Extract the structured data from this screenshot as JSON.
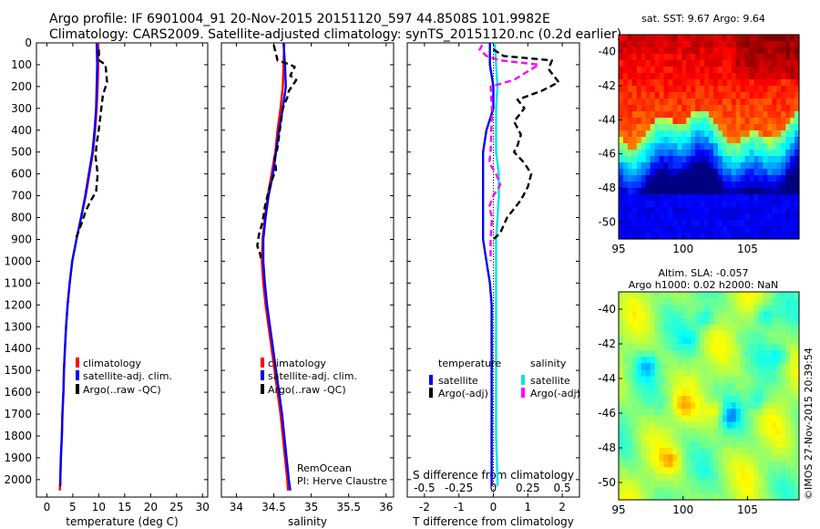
{
  "title_line1": "Argo profile: IF 6901004_91 20-Nov-2015 20151120_597 44.8508S 101.9982E",
  "title_line2": "Climatology: CARS2009. Satellite-adjusted climatology: synTS_20151120.nc (0.2d earlier)",
  "sst_title": "sat. SST: 9.67 Argo: 9.64",
  "sla_title1": "Altim. SLA: -0.057",
  "sla_title2": "Argo h1000: 0.02 h2000: NaN",
  "credit": "©IMOS 27-Nov-2015 20:39:54",
  "colors": {
    "climatology": "#ff0000",
    "satellite": "#0000ff",
    "argo": "#000000",
    "sal_sat": "#00e5e5",
    "sal_argo": "#ff00ff"
  },
  "chart_data": [
    {
      "type": "line",
      "xlabel": "temperature (deg C)",
      "xlim": [
        -2,
        31
      ],
      "ylim": [
        0,
        2080
      ],
      "xticks": [
        0,
        5,
        10,
        15,
        20,
        25,
        30
      ],
      "xtick_labels": [
        "0",
        "5",
        "10",
        "15",
        "20",
        "25",
        "30"
      ],
      "yticks": [
        0,
        100,
        200,
        300,
        400,
        500,
        600,
        700,
        800,
        900,
        1000,
        1100,
        1200,
        1300,
        1400,
        1500,
        1600,
        1700,
        1800,
        1900,
        2000
      ],
      "legend": [
        "climatology",
        "satellite-adj. clim.",
        "Argo(..raw -QC)"
      ],
      "series": [
        {
          "name": "climatology",
          "color": "#ff0000",
          "dash": "",
          "points": [
            [
              9.9,
              0
            ],
            [
              9.9,
              100
            ],
            [
              9.8,
              200
            ],
            [
              9.6,
              300
            ],
            [
              9.3,
              400
            ],
            [
              8.9,
              500
            ],
            [
              8.2,
              600
            ],
            [
              7.5,
              700
            ],
            [
              6.6,
              800
            ],
            [
              5.7,
              900
            ],
            [
              4.9,
              1000
            ],
            [
              4.4,
              1100
            ],
            [
              4.0,
              1200
            ],
            [
              3.7,
              1300
            ],
            [
              3.5,
              1400
            ],
            [
              3.3,
              1500
            ],
            [
              3.2,
              1600
            ],
            [
              3.0,
              1700
            ],
            [
              2.9,
              1800
            ],
            [
              2.7,
              1900
            ],
            [
              2.6,
              2000
            ],
            [
              2.5,
              2050
            ]
          ]
        },
        {
          "name": "satellite-adj. clim.",
          "color": "#0000ff",
          "dash": "",
          "points": [
            [
              9.6,
              0
            ],
            [
              9.7,
              100
            ],
            [
              9.6,
              200
            ],
            [
              9.5,
              300
            ],
            [
              9.2,
              400
            ],
            [
              8.8,
              500
            ],
            [
              8.1,
              600
            ],
            [
              7.4,
              700
            ],
            [
              6.6,
              800
            ],
            [
              5.7,
              900
            ],
            [
              4.9,
              1000
            ],
            [
              4.4,
              1100
            ],
            [
              4.0,
              1200
            ],
            [
              3.7,
              1300
            ],
            [
              3.5,
              1400
            ],
            [
              3.3,
              1500
            ],
            [
              3.2,
              1600
            ],
            [
              3.0,
              1700
            ],
            [
              2.9,
              1800
            ],
            [
              2.7,
              1900
            ],
            [
              2.6,
              2000
            ],
            [
              2.6,
              2030
            ]
          ]
        },
        {
          "name": "Argo(..raw -QC)",
          "color": "#000000",
          "dash": "7,4",
          "points": [
            [
              10.0,
              30
            ],
            [
              10.1,
              80
            ],
            [
              11.3,
              100
            ],
            [
              11.6,
              180
            ],
            [
              10.8,
              240
            ],
            [
              10.5,
              300
            ],
            [
              10.0,
              400
            ],
            [
              9.6,
              460
            ],
            [
              9.4,
              520
            ],
            [
              9.8,
              600
            ],
            [
              9.5,
              680
            ],
            [
              8.3,
              730
            ],
            [
              7.5,
              770
            ],
            [
              6.8,
              820
            ],
            [
              6.2,
              860
            ],
            [
              5.5,
              900
            ]
          ]
        }
      ]
    },
    {
      "type": "line",
      "xlabel": "salinity",
      "xlim": [
        33.8,
        36.1
      ],
      "ylim": [
        0,
        2080
      ],
      "xticks": [
        34,
        34.5,
        35,
        35.5,
        36
      ],
      "xtick_labels": [
        "34",
        "34.5",
        "35",
        "35.5",
        "36"
      ],
      "legend": [
        "climatology",
        "satellite-adj. clim.",
        "Argo(..raw -QC)"
      ],
      "annotation1": "RemOcean",
      "annotation2": "PI: Herve Claustre",
      "series": [
        {
          "name": "climatology",
          "color": "#ff0000",
          "dash": "",
          "points": [
            [
              34.64,
              0
            ],
            [
              34.63,
              100
            ],
            [
              34.62,
              200
            ],
            [
              34.59,
              300
            ],
            [
              34.55,
              400
            ],
            [
              34.52,
              500
            ],
            [
              34.47,
              600
            ],
            [
              34.42,
              700
            ],
            [
              34.38,
              800
            ],
            [
              34.35,
              900
            ],
            [
              34.34,
              1000
            ],
            [
              34.36,
              1100
            ],
            [
              34.39,
              1200
            ],
            [
              34.43,
              1300
            ],
            [
              34.47,
              1400
            ],
            [
              34.51,
              1500
            ],
            [
              34.55,
              1600
            ],
            [
              34.59,
              1700
            ],
            [
              34.62,
              1800
            ],
            [
              34.65,
              1900
            ],
            [
              34.68,
              2000
            ],
            [
              34.69,
              2050
            ]
          ]
        },
        {
          "name": "satellite-adj. clim.",
          "color": "#0000ff",
          "dash": "",
          "points": [
            [
              34.63,
              0
            ],
            [
              34.65,
              100
            ],
            [
              34.66,
              200
            ],
            [
              34.62,
              300
            ],
            [
              34.57,
              400
            ],
            [
              34.53,
              500
            ],
            [
              34.49,
              600
            ],
            [
              34.43,
              700
            ],
            [
              34.39,
              800
            ],
            [
              34.36,
              900
            ],
            [
              34.36,
              1000
            ],
            [
              34.38,
              1100
            ],
            [
              34.41,
              1200
            ],
            [
              34.45,
              1300
            ],
            [
              34.49,
              1400
            ],
            [
              34.53,
              1500
            ],
            [
              34.57,
              1600
            ],
            [
              34.61,
              1700
            ],
            [
              34.64,
              1800
            ],
            [
              34.67,
              1900
            ],
            [
              34.7,
              2000
            ],
            [
              34.72,
              2050
            ]
          ]
        },
        {
          "name": "Argo(..raw -QC)",
          "color": "#000000",
          "dash": "7,4",
          "points": [
            [
              34.5,
              10
            ],
            [
              34.55,
              80
            ],
            [
              34.72,
              100
            ],
            [
              34.78,
              110
            ],
            [
              34.72,
              150
            ],
            [
              34.8,
              170
            ],
            [
              34.7,
              220
            ],
            [
              34.68,
              250
            ],
            [
              34.62,
              300
            ],
            [
              34.58,
              400
            ],
            [
              34.55,
              480
            ],
            [
              34.51,
              530
            ],
            [
              34.53,
              580
            ],
            [
              34.45,
              650
            ],
            [
              34.38,
              750
            ],
            [
              34.35,
              820
            ],
            [
              34.3,
              880
            ],
            [
              34.28,
              930
            ],
            [
              34.32,
              970
            ],
            [
              34.33,
              1000
            ]
          ]
        }
      ]
    },
    {
      "type": "line",
      "xlabel": "T difference from climatology",
      "xlim": [
        -2.5,
        2.5
      ],
      "ylim": [
        0,
        2080
      ],
      "xticks": [
        -2,
        -1,
        0,
        1,
        2
      ],
      "xtick_labels": [
        "-2",
        "-1",
        "0",
        "1",
        "2"
      ],
      "sxlabel": "S difference from climatology",
      "sxticks": [
        -0.5,
        -0.25,
        0,
        0.25,
        0.5
      ],
      "sxtick_labels": [
        "-0.5",
        "-0.25",
        "0",
        "0.25",
        "0.5"
      ],
      "legend_temp_header": "temperature",
      "legend_sal_header": "salinity",
      "legend_temp": [
        "satellite",
        "Argo(-adj)"
      ],
      "legend_sal": [
        "satellite",
        "Argo(-adj)"
      ],
      "series": [
        {
          "name": "T satellite",
          "color": "#0000ff",
          "dash": "",
          "points": [
            [
              -0.1,
              0
            ],
            [
              -0.1,
              100
            ],
            [
              0.0,
              200
            ],
            [
              0.0,
              300
            ],
            [
              -0.1,
              350
            ],
            [
              -0.2,
              400
            ],
            [
              -0.3,
              500
            ],
            [
              -0.3,
              600
            ],
            [
              -0.3,
              700
            ],
            [
              -0.3,
              800
            ],
            [
              -0.3,
              900
            ],
            [
              -0.2,
              1000
            ],
            [
              -0.1,
              1100
            ],
            [
              -0.05,
              1200
            ],
            [
              -0.05,
              1400
            ],
            [
              -0.05,
              1600
            ],
            [
              -0.05,
              1800
            ],
            [
              -0.05,
              2000
            ],
            [
              -0.05,
              2030
            ]
          ]
        },
        {
          "name": "S satellite",
          "color": "#00e5e5",
          "dash": "",
          "points": [
            [
              0.01,
              0
            ],
            [
              0.02,
              100
            ],
            [
              0.03,
              200
            ],
            [
              0.02,
              300
            ],
            [
              0.02,
              400
            ],
            [
              0.02,
              500
            ],
            [
              0.04,
              600
            ],
            [
              0.04,
              700
            ],
            [
              0.03,
              800
            ],
            [
              0.02,
              900
            ],
            [
              0.02,
              1000
            ],
            [
              0.02,
              1200
            ],
            [
              0.02,
              1400
            ],
            [
              0.02,
              1600
            ],
            [
              0.02,
              1800
            ],
            [
              0.03,
              2000
            ],
            [
              0.03,
              2030
            ]
          ]
        },
        {
          "name": "T Argo(-adj)",
          "color": "#000000",
          "dash": "7,4",
          "points": [
            [
              0.0,
              30
            ],
            [
              0.3,
              60
            ],
            [
              1.7,
              80
            ],
            [
              1.6,
              120
            ],
            [
              1.9,
              180
            ],
            [
              1.4,
              220
            ],
            [
              0.7,
              260
            ],
            [
              0.9,
              300
            ],
            [
              0.6,
              360
            ],
            [
              0.8,
              420
            ],
            [
              0.7,
              470
            ],
            [
              0.6,
              500
            ],
            [
              0.9,
              550
            ],
            [
              1.1,
              600
            ],
            [
              1.0,
              660
            ],
            [
              0.8,
              720
            ],
            [
              0.4,
              800
            ],
            [
              0.2,
              870
            ],
            [
              0.0,
              900
            ]
          ]
        },
        {
          "name": "S Argo(-adj)",
          "color": "#ff00ff",
          "dash": "7,4",
          "points": [
            [
              -0.08,
              10
            ],
            [
              -0.1,
              30
            ],
            [
              -0.05,
              60
            ],
            [
              0.05,
              80
            ],
            [
              0.33,
              100
            ],
            [
              0.2,
              150
            ],
            [
              0.15,
              170
            ],
            [
              -0.02,
              200
            ],
            [
              -0.01,
              300
            ],
            [
              -0.02,
              500
            ],
            [
              -0.03,
              550
            ],
            [
              0.02,
              600
            ],
            [
              0.05,
              650
            ],
            [
              0.0,
              700
            ],
            [
              -0.03,
              750
            ],
            [
              -0.01,
              800
            ],
            [
              -0.02,
              900
            ],
            [
              -0.02,
              1000
            ]
          ]
        }
      ]
    },
    {
      "type": "heatmap",
      "title": "sat. SST: 9.67 Argo: 9.64",
      "xlim": [
        95,
        109
      ],
      "ylim": [
        -51,
        -39
      ],
      "xticks": [
        95,
        100,
        105
      ],
      "yticks": [
        -40,
        -42,
        -44,
        -46,
        -48,
        -50
      ]
    },
    {
      "type": "heatmap",
      "title": "Altim. SLA: -0.057 / Argo h1000: 0.02 h2000: NaN",
      "xlim": [
        95,
        109
      ],
      "ylim": [
        -51,
        -39
      ],
      "xticks": [
        95,
        100,
        105
      ],
      "yticks": [
        -40,
        -42,
        -44,
        -46,
        -48,
        -50
      ]
    }
  ]
}
